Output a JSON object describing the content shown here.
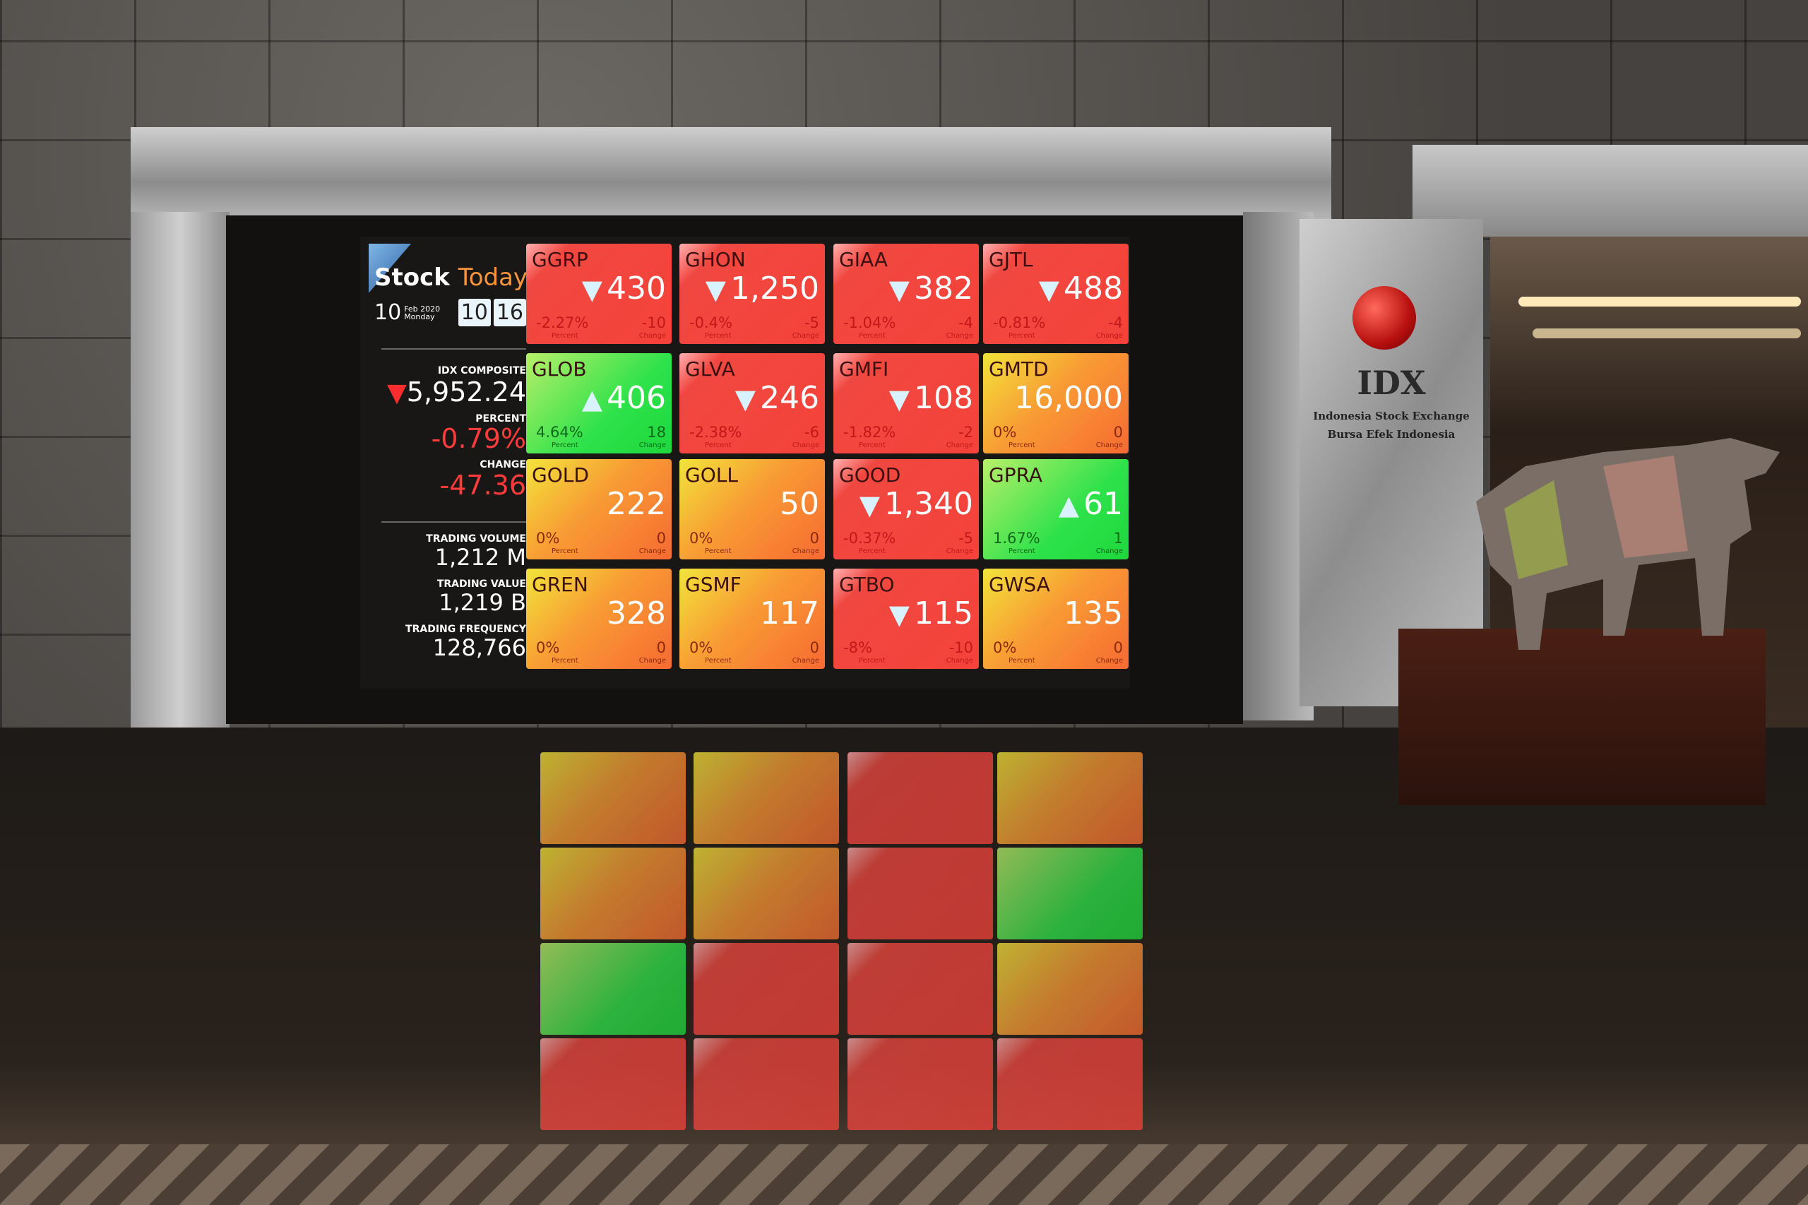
{
  "board": {
    "brand_stock": "Stock",
    "brand_today": "Today",
    "day": "10",
    "month_year": "Feb 2020",
    "weekday": "Monday",
    "clock_hour": "10",
    "clock_minute": "16",
    "index_label": "IDX COMPOSITE",
    "index_value": "5,952.24",
    "index_direction": "down",
    "percent_label": "PERCENT",
    "percent_value": "-0.79%",
    "change_label": "CHANGE",
    "change_value": "-47.36",
    "volume_label": "TRADING VOLUME",
    "volume_value": "1,212 M",
    "tvalue_label": "TRADING VALUE",
    "tvalue_value": "1,219 B",
    "frequency_label": "TRADING FREQUENCY",
    "frequency_value": "128,766"
  },
  "tile_labels": {
    "percent": "Percent",
    "change": "Change"
  },
  "tiles": [
    {
      "symbol": "GGRP",
      "price": "430",
      "direction": "down",
      "percent": "-2.27%",
      "change": "-10"
    },
    {
      "symbol": "GHON",
      "price": "1,250",
      "direction": "down",
      "percent": "-0.4%",
      "change": "-5"
    },
    {
      "symbol": "GIAA",
      "price": "382",
      "direction": "down",
      "percent": "-1.04%",
      "change": "-4"
    },
    {
      "symbol": "GJTL",
      "price": "488",
      "direction": "down",
      "percent": "-0.81%",
      "change": "-4"
    },
    {
      "symbol": "GLOB",
      "price": "406",
      "direction": "up",
      "percent": "4.64%",
      "change": "18"
    },
    {
      "symbol": "GLVA",
      "price": "246",
      "direction": "down",
      "percent": "-2.38%",
      "change": "-6"
    },
    {
      "symbol": "GMFI",
      "price": "108",
      "direction": "down",
      "percent": "-1.82%",
      "change": "-2"
    },
    {
      "symbol": "GMTD",
      "price": "16,000",
      "direction": "flat",
      "percent": "0%",
      "change": "0"
    },
    {
      "symbol": "GOLD",
      "price": "222",
      "direction": "flat",
      "percent": "0%",
      "change": "0"
    },
    {
      "symbol": "GOLL",
      "price": "50",
      "direction": "flat",
      "percent": "0%",
      "change": "0"
    },
    {
      "symbol": "GOOD",
      "price": "1,340",
      "direction": "down",
      "percent": "-0.37%",
      "change": "-5"
    },
    {
      "symbol": "GPRA",
      "price": "61",
      "direction": "up",
      "percent": "1.67%",
      "change": "1"
    },
    {
      "symbol": "GREN",
      "price": "328",
      "direction": "flat",
      "percent": "0%",
      "change": "0"
    },
    {
      "symbol": "GSMF",
      "price": "117",
      "direction": "flat",
      "percent": "0%",
      "change": "0"
    },
    {
      "symbol": "GTBO",
      "price": "115",
      "direction": "down",
      "percent": "-8%",
      "change": "-10"
    },
    {
      "symbol": "GWSA",
      "price": "135",
      "direction": "flat",
      "percent": "0%",
      "change": "0"
    }
  ],
  "colors": {
    "down": "#f5423a",
    "up": "#1ed83c",
    "flat": "#f78a34",
    "brand_accent": "#f7943c",
    "negative_text": "#ff3b3b"
  },
  "sign_logo": {
    "mark": "IDX",
    "line1": "Indonesia Stock Exchange",
    "line2": "Bursa Efek Indonesia"
  }
}
